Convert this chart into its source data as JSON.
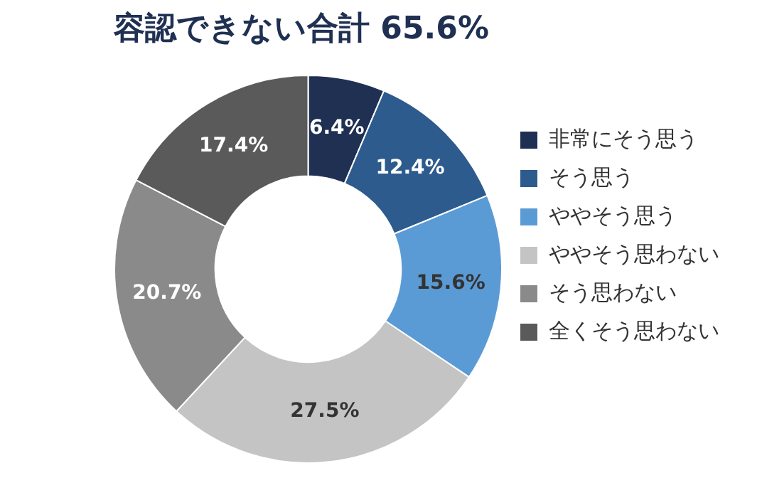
{
  "chart_data": {
    "type": "donut",
    "title": "容認できない合計 65.6%",
    "categories": [
      "非常にそう思う",
      "そう思う",
      "ややそう思う",
      "ややそう思わない",
      "そう思わない",
      "全くそう思わない"
    ],
    "values": [
      6.4,
      12.4,
      15.6,
      27.5,
      20.7,
      17.4
    ],
    "colors": [
      "#1f3052",
      "#2e5b8e",
      "#5b9bd5",
      "#c4c4c4",
      "#8a8a8a",
      "#5a5a5a"
    ],
    "value_labels": [
      "6.4%",
      "12.4%",
      "15.6%",
      "27.5%",
      "20.7%",
      "17.4%"
    ],
    "legend": "right"
  }
}
